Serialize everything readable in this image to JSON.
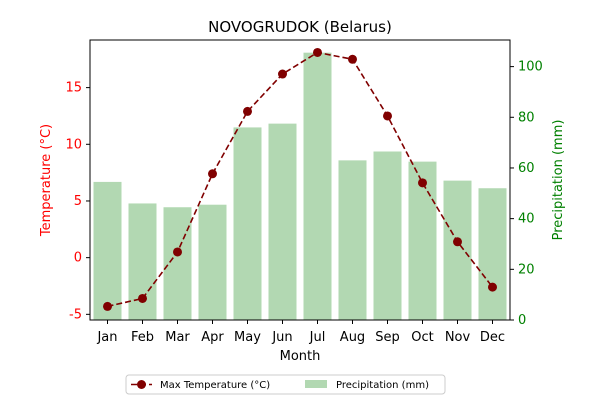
{
  "chart_data": {
    "type": "bar+line",
    "title": "NOVOGRUDOK (Belarus)",
    "xlabel": "Month",
    "ylabel_left": "Temperature (°C)",
    "ylabel_right": "Precipitation (mm)",
    "categories": [
      "Jan",
      "Feb",
      "Mar",
      "Apr",
      "May",
      "Jun",
      "Jul",
      "Aug",
      "Sep",
      "Oct",
      "Nov",
      "Dec"
    ],
    "left_axis": {
      "min": -5.5,
      "max": 19.2,
      "ticks": [
        -5,
        0,
        5,
        10,
        15
      ],
      "color": "#ff0000"
    },
    "right_axis": {
      "min": 0,
      "max": 110.5,
      "ticks": [
        0,
        20,
        40,
        60,
        80,
        100
      ],
      "color": "#008000"
    },
    "series": [
      {
        "name": "Max Temperature (°C)",
        "type": "line",
        "axis": "left",
        "color": "#800000",
        "values": [
          -4.3,
          -3.6,
          0.5,
          7.4,
          12.9,
          16.2,
          18.1,
          17.5,
          12.5,
          6.6,
          1.4,
          -2.6
        ]
      },
      {
        "name": "Precipitation (mm)",
        "type": "bar",
        "axis": "right",
        "color": "#b2d8b2",
        "values": [
          54.5,
          46.0,
          44.5,
          45.5,
          76.0,
          77.5,
          105.5,
          63.0,
          66.5,
          62.5,
          55.0,
          52.0
        ]
      }
    ],
    "legend_position": "bottom-center",
    "grid": false
  }
}
